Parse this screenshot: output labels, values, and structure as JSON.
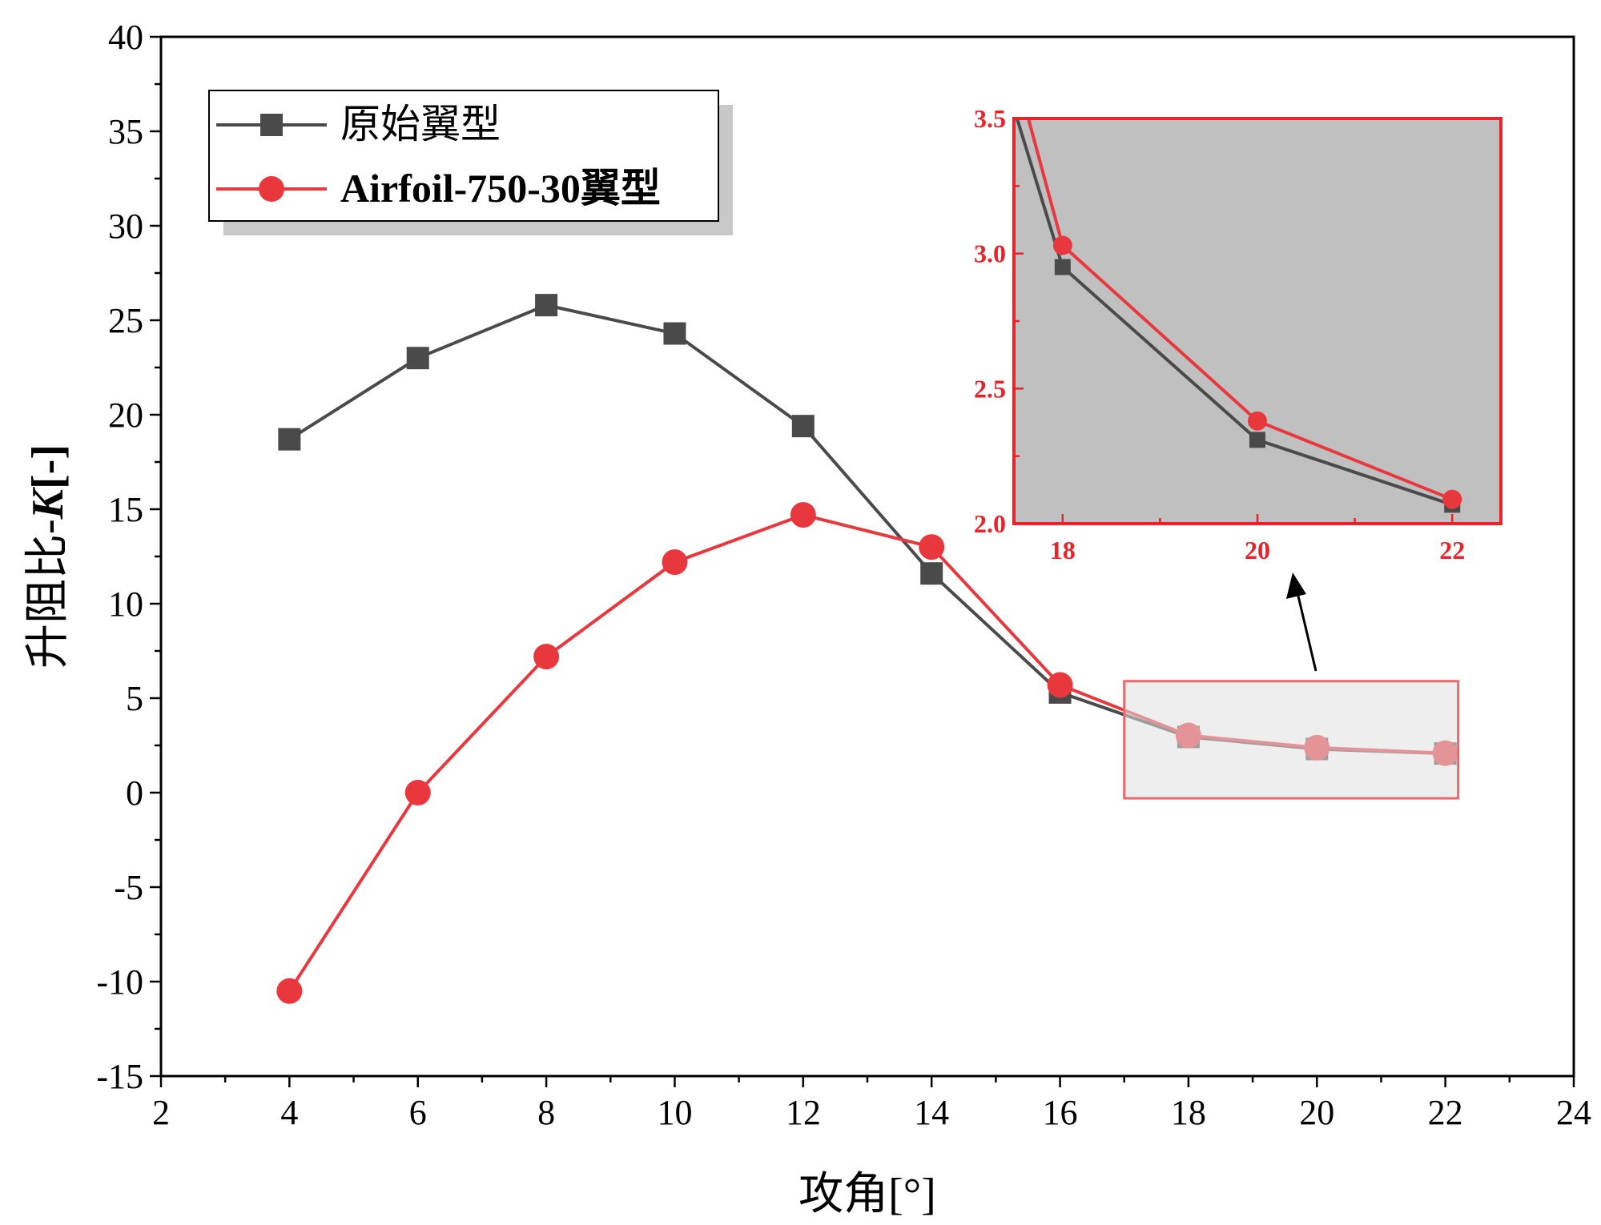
{
  "chart_data": [
    {
      "type": "line",
      "title": "",
      "xlabel": "攻角[°]",
      "ylabel_prefix": "升阻比-",
      "ylabel_var": "K",
      "ylabel_suffix": "[-]",
      "xlim": [
        2,
        24
      ],
      "ylim": [
        -15,
        40
      ],
      "xticks": [
        "2",
        "4",
        "6",
        "8",
        "10",
        "12",
        "14",
        "16",
        "18",
        "20",
        "22",
        "24"
      ],
      "yticks": [
        "-15",
        "-10",
        "-5",
        "0",
        "5",
        "10",
        "15",
        "20",
        "25",
        "30",
        "35",
        "40"
      ],
      "x": [
        4,
        6,
        8,
        10,
        12,
        14,
        16,
        18,
        20,
        22
      ],
      "series": [
        {
          "name": "原始翼型",
          "marker": "square",
          "color": "#4a4a4a",
          "values": [
            18.7,
            23.0,
            25.8,
            24.3,
            19.4,
            11.6,
            5.3,
            2.95,
            2.31,
            2.07
          ]
        },
        {
          "name": "Airfoil-750-30翼型",
          "marker": "circle",
          "color": "#e8383d",
          "values": [
            -10.5,
            0.0,
            7.2,
            12.2,
            14.7,
            13.0,
            5.7,
            3.03,
            2.38,
            2.09
          ]
        }
      ],
      "legend": "top-left",
      "grid": false
    },
    {
      "type": "line",
      "title": "",
      "role": "inset",
      "xlim": [
        17.5,
        22.5
      ],
      "ylim": [
        2.0,
        3.5
      ],
      "xticks": [
        "18",
        "20",
        "22"
      ],
      "yticks": [
        "2.0",
        "2.5",
        "3.0",
        "3.5"
      ],
      "x": [
        18,
        20,
        22
      ],
      "highlight_region": {
        "xlim": [
          17,
          22.2
        ],
        "ylim": [
          -0.3,
          5.9
        ]
      },
      "colors": {
        "frame": "#e8232a",
        "background": "#c0c0c0",
        "highlight_fill": "#e0e0e0"
      },
      "grid": false
    }
  ]
}
